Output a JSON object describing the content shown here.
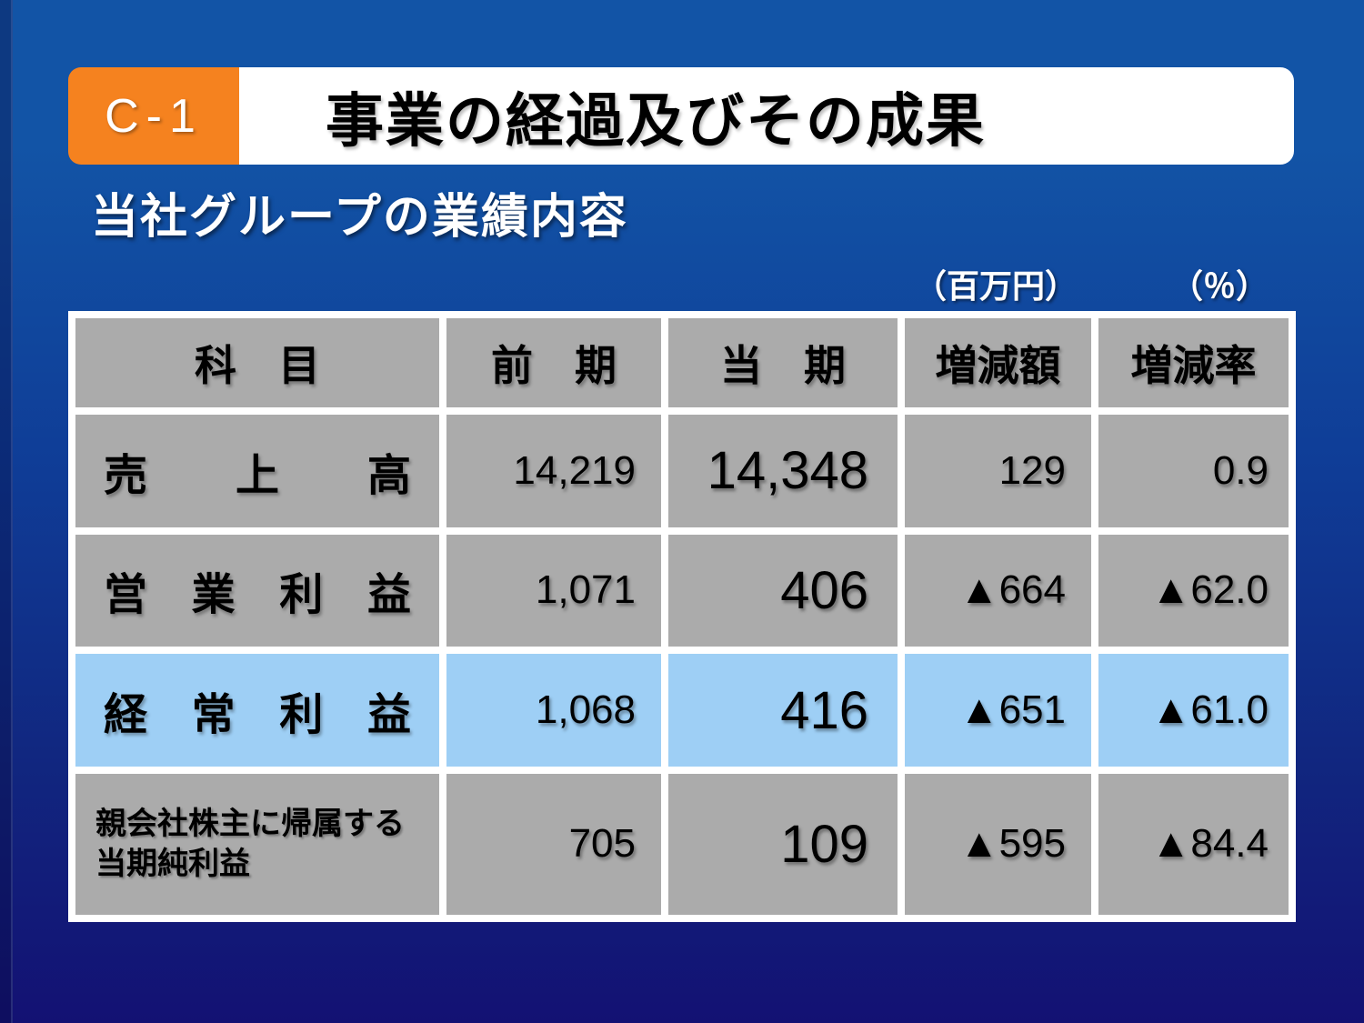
{
  "page": {
    "badge_label": "C-1",
    "title": "事業の経過及びその成果",
    "subtitle": "当社グループの業績内容",
    "unit_million_yen": "（百万円）",
    "unit_percent": "（％）"
  },
  "colors": {
    "accent_orange": "#f5821f",
    "cell_gray": "#ababab",
    "highlight_blue": "#9ecff5",
    "background_top": "#1254a6",
    "background_bottom": "#131173"
  },
  "table": {
    "headers": [
      "科　目",
      "前　期",
      "当　期",
      "増減額",
      "増減率"
    ],
    "rows": [
      {
        "label": "売上高",
        "label_line2": "",
        "prev": "14,219",
        "curr": "14,348",
        "change": "129",
        "rate": "0.9"
      },
      {
        "label": "営業利益",
        "label_line2": "",
        "prev": "1,071",
        "curr": "406",
        "change": "▲664",
        "rate": "▲62.0"
      },
      {
        "label": "経常利益",
        "label_line2": "",
        "prev": "1,068",
        "curr": "416",
        "change": "▲651",
        "rate": "▲61.0"
      },
      {
        "label": "親会社株主に帰属する",
        "label_line2": "当期純利益",
        "prev": "705",
        "curr": "109",
        "change": "▲595",
        "rate": "▲84.4"
      }
    ]
  },
  "chart_data": {
    "type": "table",
    "title": "当社グループの業績内容",
    "columns": [
      "科目",
      "前期",
      "当期",
      "増減額",
      "増減率"
    ],
    "units": {
      "amounts": "百万円",
      "rate": "%"
    },
    "rows": [
      {
        "item": "売上高",
        "prev": 14219,
        "curr": 14348,
        "change": 129,
        "rate_pct": 0.9
      },
      {
        "item": "営業利益",
        "prev": 1071,
        "curr": 406,
        "change": -664,
        "rate_pct": -62.0
      },
      {
        "item": "経常利益",
        "prev": 1068,
        "curr": 416,
        "change": -651,
        "rate_pct": -61.0
      },
      {
        "item": "親会社株主に帰属する当期純利益",
        "prev": 705,
        "curr": 109,
        "change": -595,
        "rate_pct": -84.4
      }
    ]
  }
}
